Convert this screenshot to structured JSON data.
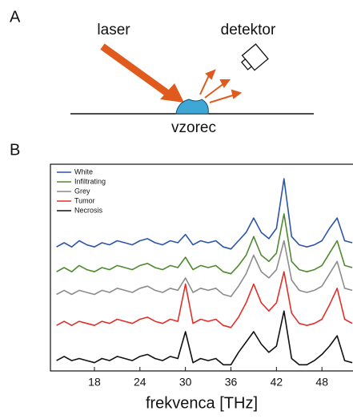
{
  "panel_labels": [
    "A",
    "B"
  ],
  "diagram": {
    "laser": "laser",
    "detector": "detektor",
    "sample": "vzorec"
  },
  "chart_data": {
    "type": "line",
    "x_label": "frekvenca [THz]",
    "x": [
      13,
      14,
      15,
      16,
      17,
      18,
      19,
      20,
      21,
      22,
      23,
      24,
      25,
      26,
      27,
      28,
      29,
      30,
      31,
      32,
      33,
      34,
      35,
      36,
      37,
      38,
      39,
      40,
      41,
      42,
      43,
      44,
      45,
      46,
      47,
      48,
      49,
      50,
      51,
      52
    ],
    "series": [
      {
        "name": "White",
        "color": "#2b55a8",
        "values": [
          6.0,
          6.2,
          6.0,
          6.3,
          6.1,
          6.0,
          6.2,
          6.1,
          6.3,
          6.2,
          6.1,
          6.3,
          6.4,
          6.2,
          6.1,
          6.3,
          6.2,
          6.6,
          6.1,
          6.3,
          6.2,
          6.3,
          6.0,
          5.9,
          6.3,
          6.7,
          7.4,
          6.7,
          6.4,
          6.9,
          9.3,
          6.5,
          6.1,
          6.0,
          6.1,
          6.3,
          6.9,
          7.4,
          6.3,
          6.2
        ]
      },
      {
        "name": "Infiltrating",
        "color": "#4e8a2e",
        "values": [
          4.8,
          5.0,
          4.8,
          5.1,
          4.9,
          4.8,
          5.0,
          4.9,
          5.1,
          5.0,
          4.9,
          5.1,
          5.2,
          5.0,
          4.9,
          5.1,
          5.0,
          5.5,
          4.9,
          5.1,
          5.0,
          5.1,
          4.8,
          4.7,
          5.1,
          5.6,
          6.5,
          5.6,
          5.3,
          5.7,
          7.6,
          5.3,
          4.9,
          4.8,
          4.9,
          5.1,
          5.7,
          6.3,
          5.1,
          5.0
        ]
      },
      {
        "name": "Grey",
        "color": "#8c8c8c",
        "values": [
          3.7,
          3.9,
          3.7,
          3.9,
          3.8,
          3.7,
          3.9,
          3.8,
          4.0,
          3.9,
          3.8,
          4.0,
          4.1,
          3.9,
          3.8,
          4.0,
          3.9,
          4.5,
          3.8,
          4.0,
          3.9,
          4.0,
          3.7,
          3.6,
          4.1,
          4.7,
          5.6,
          4.8,
          4.5,
          4.9,
          6.3,
          4.4,
          3.9,
          3.8,
          3.9,
          4.1,
          4.7,
          5.3,
          4.0,
          3.9
        ]
      },
      {
        "name": "Tumor",
        "color": "#e0302a",
        "values": [
          2.2,
          2.4,
          2.2,
          2.4,
          2.3,
          2.2,
          2.4,
          2.3,
          2.5,
          2.4,
          2.3,
          2.5,
          2.6,
          2.4,
          2.3,
          2.5,
          2.4,
          4.2,
          2.3,
          2.5,
          2.4,
          2.5,
          2.2,
          2.1,
          2.6,
          3.3,
          4.2,
          3.3,
          2.9,
          3.3,
          4.8,
          2.8,
          2.3,
          2.2,
          2.3,
          2.5,
          3.2,
          4.0,
          2.5,
          2.3
        ]
      },
      {
        "name": "Necrosis",
        "color": "#111111",
        "values": [
          0.5,
          0.7,
          0.5,
          0.6,
          0.5,
          0.4,
          0.6,
          0.5,
          0.7,
          0.6,
          0.5,
          0.7,
          0.8,
          0.6,
          0.5,
          0.7,
          0.6,
          1.9,
          0.4,
          0.6,
          0.5,
          0.6,
          0.3,
          0.3,
          0.9,
          1.4,
          1.9,
          1.3,
          0.9,
          1.2,
          2.9,
          0.6,
          0.3,
          0.3,
          0.5,
          0.8,
          1.2,
          1.7,
          0.5,
          0.4
        ]
      }
    ],
    "xlim": [
      12.2,
      52.2
    ],
    "ylim": [
      0,
      10
    ],
    "xticks": [
      18,
      24,
      30,
      36,
      42,
      48
    ],
    "legend": "upper-left"
  }
}
